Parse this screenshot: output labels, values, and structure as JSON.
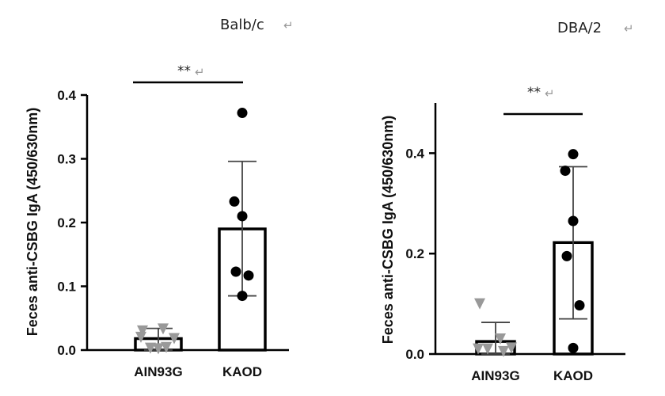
{
  "chart_data": [
    {
      "type": "bar",
      "title": "Balb/c",
      "ylabel": "Feces anti-CSBG IgA (450/630nm)",
      "categories": [
        "AIN93G",
        "KAOD"
      ],
      "values": [
        0.018,
        0.19
      ],
      "error_low": [
        0.0,
        0.085
      ],
      "error_high": [
        0.034,
        0.296
      ],
      "ylim": [
        0,
        0.4
      ],
      "yticks": [
        0.0,
        0.1,
        0.2,
        0.3,
        0.4
      ],
      "ytick_labels": [
        "0.0",
        "0.1",
        "0.2",
        "0.3",
        "0.4"
      ],
      "points": [
        {
          "category": "AIN93G",
          "marker": "triangle-down",
          "color": "#999999",
          "values": [
            0.03,
            0.033,
            0.02,
            0.018,
            0.003,
            0.004,
            0.002
          ]
        },
        {
          "category": "KAOD",
          "marker": "circle",
          "color": "#000000",
          "values": [
            0.372,
            0.233,
            0.21,
            0.123,
            0.117,
            0.085
          ]
        }
      ],
      "significance": "**"
    },
    {
      "type": "bar",
      "title": "DBA/2",
      "ylabel": "Feces anti-CSBG IgA (450/630nm)",
      "categories": [
        "AIN93G",
        "KAOD"
      ],
      "values": [
        0.025,
        0.222
      ],
      "error_low": [
        0.0,
        0.07
      ],
      "error_high": [
        0.063,
        0.373
      ],
      "ylim": [
        0,
        0.5
      ],
      "yticks": [
        0.0,
        0.2,
        0.4
      ],
      "ytick_labels": [
        "0.0",
        "0.2",
        "0.4"
      ],
      "points": [
        {
          "category": "AIN93G",
          "marker": "triangle-down",
          "color": "#999999",
          "values": [
            0.1,
            0.03,
            0.01,
            0.012,
            0.01,
            0.005
          ]
        },
        {
          "category": "KAOD",
          "marker": "circle",
          "color": "#000000",
          "values": [
            0.398,
            0.365,
            0.265,
            0.195,
            0.097,
            0.012
          ]
        }
      ],
      "significance": "**"
    }
  ],
  "colors": {
    "bar_fill": "#ffffff",
    "bar_stroke": "#000000",
    "ain_marker": "#999999",
    "kaod_marker": "#000000"
  }
}
